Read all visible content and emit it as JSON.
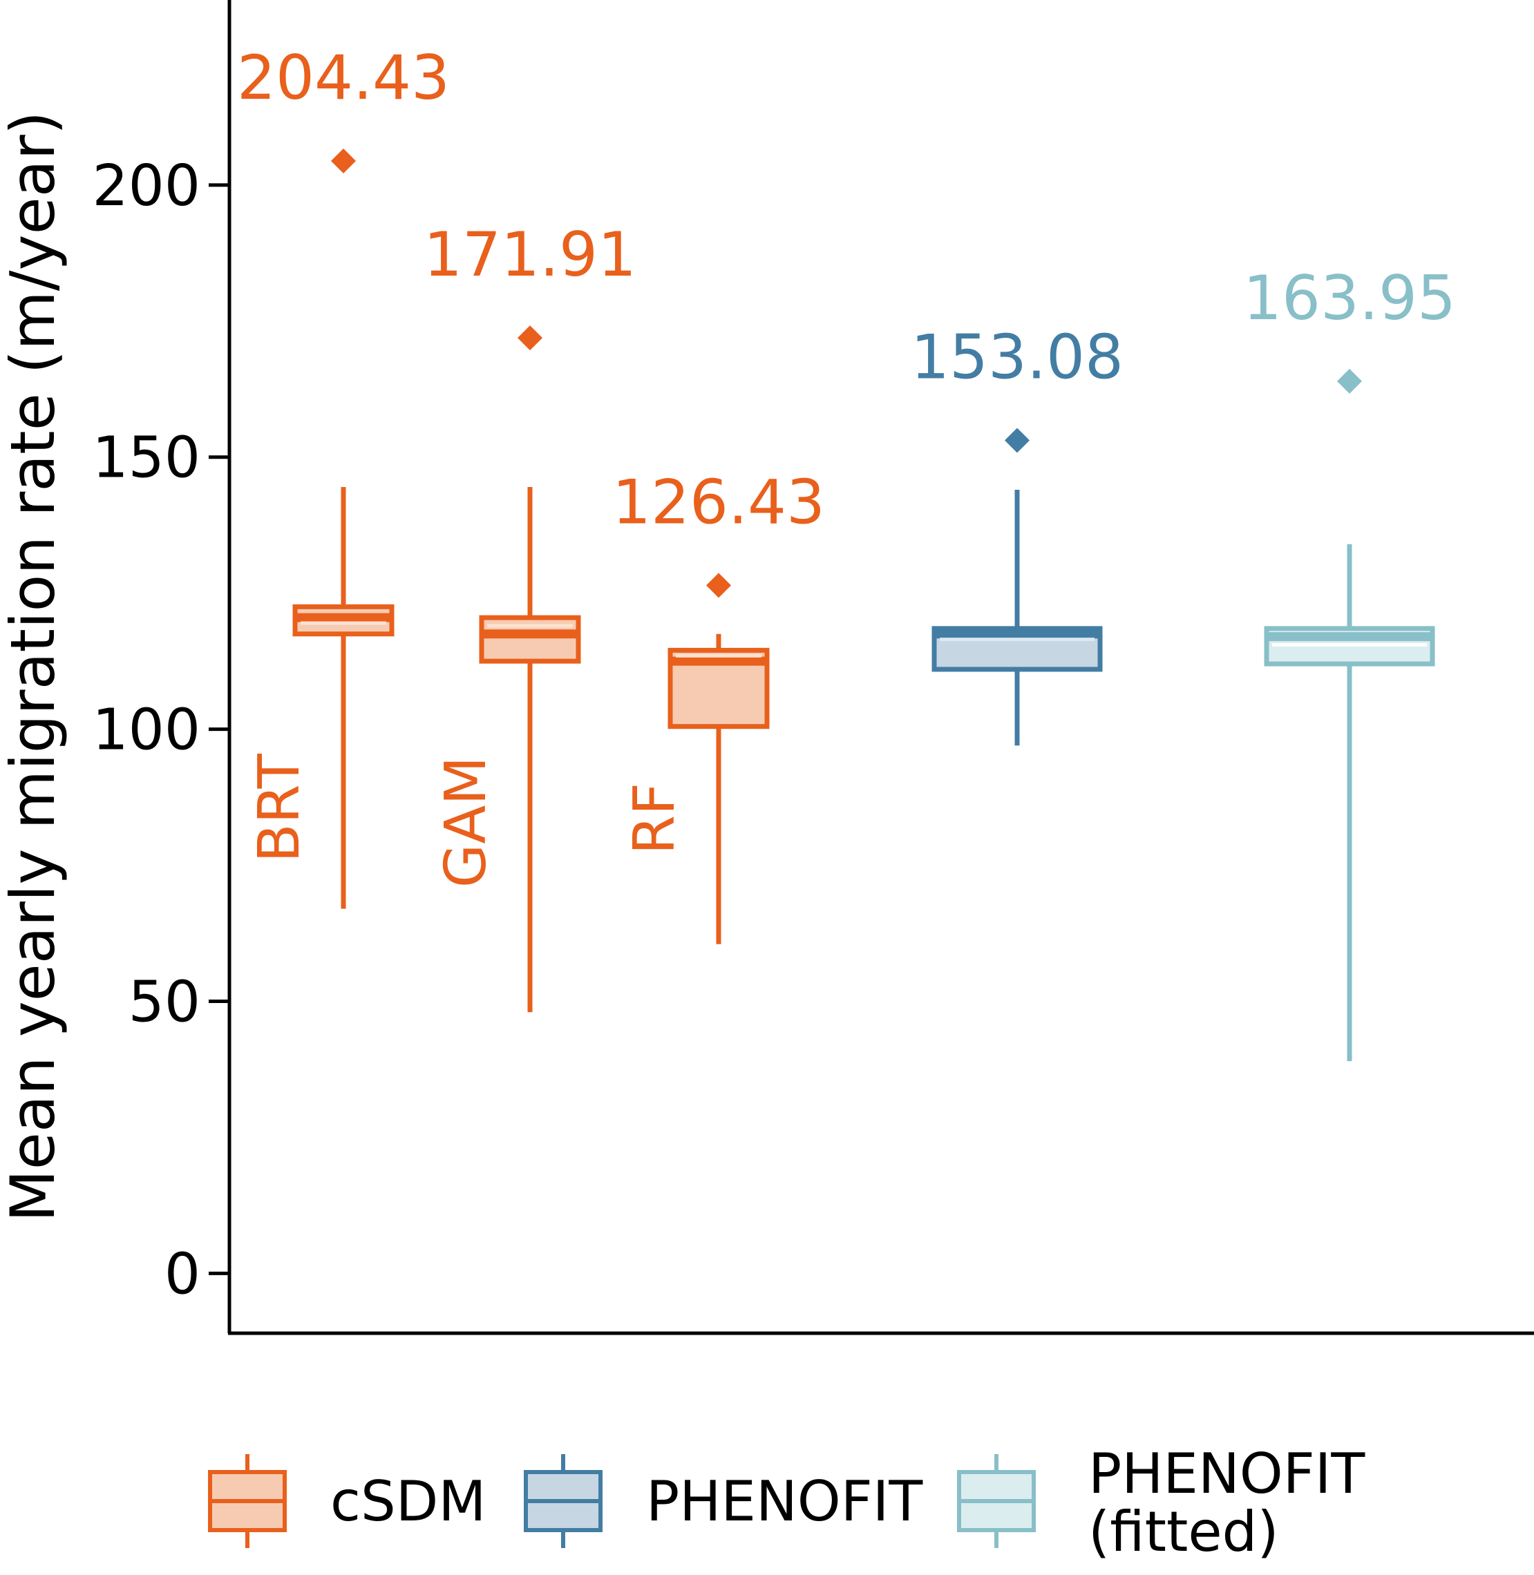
{
  "chart_data": {
    "type": "box",
    "ylabel": "Mean yearly migration rate (m/year)",
    "xlabel": "",
    "title": "",
    "ylim": [
      -11,
      234
    ],
    "yticks": [
      0,
      50,
      100,
      150,
      200
    ],
    "grid": false,
    "legend_position": "bottom",
    "boxes": [
      {
        "label": "BRT",
        "group": "cSDM",
        "whisker_low": 67,
        "q1": 117.5,
        "median": 120.5,
        "q3": 122.5,
        "whisker_high": 144.5,
        "mean": 119.5,
        "outlier": 204.43,
        "outlier_label": "204.43"
      },
      {
        "label": "GAM",
        "group": "cSDM",
        "whisker_low": 48,
        "q1": 112.5,
        "median": 117.5,
        "q3": 120.5,
        "whisker_high": 144.5,
        "mean": 119,
        "outlier": 171.91,
        "outlier_label": "171.91"
      },
      {
        "label": "RF",
        "group": "cSDM",
        "whisker_low": 60.5,
        "q1": 100.5,
        "median": 112.5,
        "q3": 114.5,
        "whisker_high": 117.5,
        "mean": 113.5,
        "outlier": 126.43,
        "outlier_label": "126.43"
      },
      {
        "label": "",
        "group": "PHENOFIT",
        "whisker_low": 97,
        "q1": 111,
        "median": 117.5,
        "q3": 118.5,
        "whisker_high": 144,
        "mean": 116.5,
        "outlier": 153.08,
        "outlier_label": "153.08"
      },
      {
        "label": "",
        "group": "PHENOFIT (fitted)",
        "whisker_low": 39,
        "q1": 112,
        "median": 117,
        "q3": 118.5,
        "whisker_high": 134,
        "mean": 115.5,
        "outlier": 163.95,
        "outlier_label": "163.95"
      }
    ],
    "groups": [
      {
        "name": "cSDM",
        "line": "#e8601c",
        "fill": "#f7cbb2",
        "light": "#fbe2d2"
      },
      {
        "name": "PHENOFIT",
        "line": "#437da4",
        "fill": "#c7d6e3",
        "light": "#dde7f0"
      },
      {
        "name": "PHENOFIT (fitted)",
        "line": "#88bfc8",
        "fill": "#dcedef",
        "light": "#ffffff"
      }
    ]
  },
  "legend": {
    "items": [
      {
        "lines": [
          "cSDM"
        ]
      },
      {
        "lines": [
          "PHENOFIT"
        ]
      },
      {
        "lines": [
          "PHENOFIT",
          "(fitted)"
        ]
      }
    ]
  },
  "colors": {
    "axis": "#000000",
    "background": "#ffffff"
  }
}
